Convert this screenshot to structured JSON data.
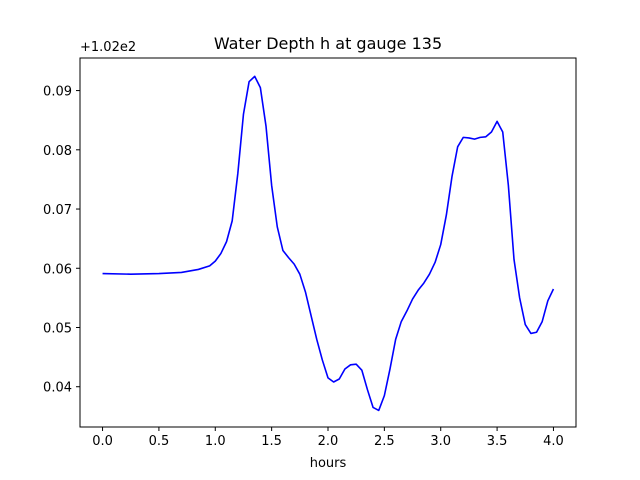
{
  "chart_data": {
    "type": "line",
    "title": "Water Depth h at gauge 135",
    "xlabel": "hours",
    "ylabel": "",
    "y_offset_label": "+1.02e2",
    "xlim": [
      -0.2,
      4.2
    ],
    "ylim": [
      0.0332,
      0.0955
    ],
    "grid": false,
    "x_ticks": [
      0.0,
      0.5,
      1.0,
      1.5,
      2.0,
      2.5,
      3.0,
      3.5,
      4.0
    ],
    "x_tick_labels": [
      "0.0",
      "0.5",
      "1.0",
      "1.5",
      "2.0",
      "2.5",
      "3.0",
      "3.5",
      "4.0"
    ],
    "y_ticks": [
      0.04,
      0.05,
      0.06,
      0.07,
      0.08,
      0.09
    ],
    "y_tick_labels": [
      "0.04",
      "0.05",
      "0.06",
      "0.07",
      "0.08",
      "0.09"
    ],
    "series": [
      {
        "color": "#0000ff",
        "x": [
          0.0,
          0.25,
          0.5,
          0.7,
          0.85,
          0.95,
          1.0,
          1.05,
          1.1,
          1.15,
          1.2,
          1.25,
          1.3,
          1.35,
          1.4,
          1.45,
          1.5,
          1.55,
          1.6,
          1.65,
          1.7,
          1.75,
          1.8,
          1.85,
          1.9,
          1.95,
          2.0,
          2.05,
          2.1,
          2.15,
          2.2,
          2.25,
          2.3,
          2.35,
          2.4,
          2.45,
          2.5,
          2.55,
          2.6,
          2.65,
          2.7,
          2.75,
          2.8,
          2.85,
          2.9,
          2.95,
          3.0,
          3.05,
          3.1,
          3.15,
          3.2,
          3.25,
          3.3,
          3.35,
          3.4,
          3.45,
          3.5,
          3.55,
          3.6,
          3.65,
          3.7,
          3.75,
          3.8,
          3.85,
          3.9,
          3.95,
          4.0
        ],
        "y": [
          0.0591,
          0.059,
          0.0591,
          0.0593,
          0.0598,
          0.0604,
          0.0612,
          0.0625,
          0.0645,
          0.068,
          0.076,
          0.086,
          0.0915,
          0.0924,
          0.0905,
          0.084,
          0.074,
          0.067,
          0.063,
          0.0618,
          0.0607,
          0.059,
          0.056,
          0.052,
          0.048,
          0.0445,
          0.0415,
          0.0408,
          0.0413,
          0.043,
          0.0437,
          0.0438,
          0.0428,
          0.0395,
          0.0365,
          0.036,
          0.0385,
          0.043,
          0.048,
          0.051,
          0.0528,
          0.0548,
          0.0563,
          0.0575,
          0.059,
          0.061,
          0.064,
          0.069,
          0.0755,
          0.0805,
          0.0821,
          0.082,
          0.0818,
          0.0821,
          0.0822,
          0.083,
          0.0848,
          0.083,
          0.074,
          0.0615,
          0.055,
          0.0505,
          0.049,
          0.0492,
          0.051,
          0.0545,
          0.0565
        ]
      }
    ]
  }
}
